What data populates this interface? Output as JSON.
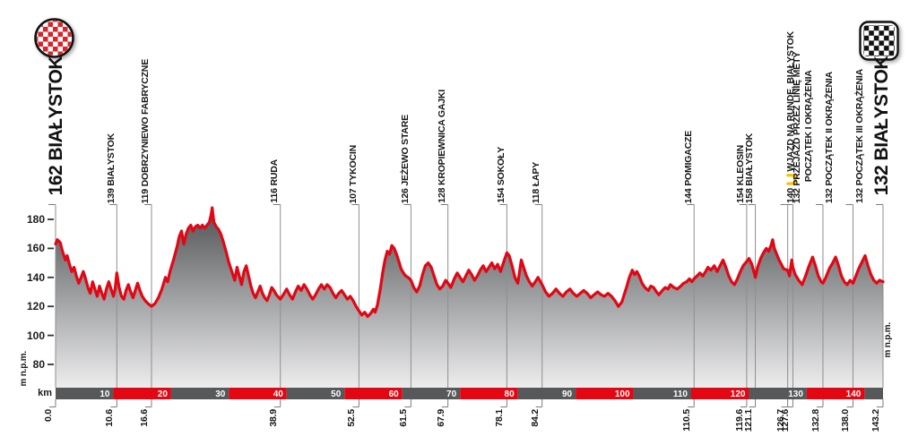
{
  "colors": {
    "profile_red": "#e30613",
    "bar_gray": "#57585a",
    "checker_red": "#d8232a",
    "waypoint_line_gray": "#8f8f8f",
    "hook_gray": "#7d7d7d",
    "text_dark": "#161616",
    "lap_icon_yellow": "#f5c400",
    "fill_top_gray": "#4f5052",
    "fill_bottom_gray": "#ededee"
  },
  "start": {
    "elevation": "162",
    "name": "BIAŁYSTOK",
    "label": "162 BIAŁYSTOK",
    "icon": "start-checkered-badge"
  },
  "finish": {
    "elevation": "132",
    "name": "BIAŁYSTOK",
    "label": "132 BIAŁYSTOK",
    "icon": "finish-checkered-flag"
  },
  "axis": {
    "unit_left": "m n.p.m.",
    "unit_right": "m n.p.m.",
    "km_label": "km",
    "y_ticks": [
      "180",
      "160",
      "140",
      "120",
      "100",
      "80"
    ]
  },
  "chart_data": {
    "type": "area",
    "xlabel": "km",
    "ylabel": "m n.p.m.",
    "x_range_km": [
      0,
      143.2
    ],
    "y_range_m": [
      80,
      190
    ],
    "grid": "vertical waypoint lines only",
    "legend": "none",
    "km_bar": {
      "interval_km": 10,
      "labels": [
        "10",
        "20",
        "30",
        "40",
        "50",
        "60",
        "70",
        "80",
        "90",
        "100",
        "110",
        "120",
        "130",
        "140"
      ],
      "alternating_colors": [
        "#57585a",
        "#e30613"
      ],
      "note": "segments alternate gray/red every 10 km, label at right end of each segment"
    },
    "waypoints": [
      {
        "km": 0.0,
        "km_label": "0.0",
        "elevation": 162,
        "name": "BIAŁYSTOK",
        "type": "start"
      },
      {
        "km": 10.6,
        "km_label": "10.6",
        "elevation": 139,
        "name": "BIAŁYSTOK",
        "label": "139 BIAŁYSTOK"
      },
      {
        "km": 16.6,
        "km_label": "16.6",
        "elevation": 119,
        "name": "DOBRZYNIEWO FABRYCZNE",
        "label": "119 DOBRZYNIEWO FABRYCZNE"
      },
      {
        "km": 38.9,
        "km_label": "38.9",
        "elevation": 116,
        "name": "RUDA",
        "label": "116 RUDA"
      },
      {
        "km": 52.5,
        "km_label": "52.5",
        "elevation": 107,
        "name": "TYKOCIN",
        "label": "107 TYKOCIN"
      },
      {
        "km": 61.5,
        "km_label": "61.5",
        "elevation": 126,
        "name": "JEŻEWO STARE",
        "label": "126 JEŻEWO STARE"
      },
      {
        "km": 67.9,
        "km_label": "67.9",
        "elevation": 128,
        "name": "KROPIEWNICA GAJKI",
        "label": "128 KROPIEWNICA GAJKI"
      },
      {
        "km": 78.1,
        "km_label": "78.1",
        "elevation": 154,
        "name": "SOKOŁY",
        "label": "154 SOKOŁY"
      },
      {
        "km": 84.2,
        "km_label": "84.2",
        "elevation": 118,
        "name": "ŁAPY",
        "label": "118 ŁAPY"
      },
      {
        "km": 110.5,
        "km_label": "110.5",
        "elevation": 144,
        "name": "POMIGACZE",
        "label": "144 POMIGACZE"
      },
      {
        "km": 119.6,
        "km_label": "119.6",
        "elevation": 154,
        "name": "KLEOSIN",
        "label": "154 KLEOSIN"
      },
      {
        "km": 121.1,
        "km_label": "121.1",
        "elevation": 158,
        "name": "BIAŁYSTOK",
        "label": "158 BIAŁYSTOK"
      },
      {
        "km": 126.7,
        "km_label": "126.7",
        "elevation": 140,
        "name": "WJAZD NA RUNDĘ, BIAŁYSTOK",
        "label_prefix": "140 ",
        "icon": "lap-loop-icon",
        "label_name": " WJAZD NA RUNDĘ, BIAŁYSTOK"
      },
      {
        "km": 127.6,
        "km_label": "127.6",
        "elevation": 132,
        "name": "PRZEJAZD PRZEZ LINIĘ METY / POCZĄTEK I OKRĄŻENIA",
        "lines": [
          "132 PRZEJAZD PRZEZ LINIĘ METY",
          "POCZĄTEK I OKRĄŻENIA"
        ]
      },
      {
        "km": 132.8,
        "km_label": "132.8",
        "elevation": 132,
        "name": "POCZĄTEK II OKRĄŻENIA",
        "label": "132 POCZĄTEK II OKRĄŻENIA"
      },
      {
        "km": 138.0,
        "km_label": "138.0",
        "elevation": 132,
        "name": "POCZĄTEK III OKRĄŻENIA",
        "label": "132 POCZĄTEK III OKRĄŻENIA"
      },
      {
        "km": 143.2,
        "km_label": "143.2",
        "elevation": 132,
        "name": "BIAŁYSTOK",
        "type": "finish"
      }
    ],
    "profile": [
      [
        0,
        163
      ],
      [
        0.3,
        166
      ],
      [
        0.8,
        164
      ],
      [
        1.2,
        158
      ],
      [
        1.7,
        152
      ],
      [
        2,
        155
      ],
      [
        2.4,
        149
      ],
      [
        2.8,
        144
      ],
      [
        3.2,
        147
      ],
      [
        3.6,
        141
      ],
      [
        4,
        136
      ],
      [
        4.4,
        140
      ],
      [
        4.8,
        144
      ],
      [
        5.2,
        139
      ],
      [
        5.6,
        133
      ],
      [
        6,
        129
      ],
      [
        6.4,
        137
      ],
      [
        6.8,
        132
      ],
      [
        7.2,
        127
      ],
      [
        7.6,
        134
      ],
      [
        8,
        129
      ],
      [
        8.4,
        125
      ],
      [
        8.8,
        132
      ],
      [
        9.2,
        137
      ],
      [
        9.6,
        132
      ],
      [
        10,
        127
      ],
      [
        10.3,
        132
      ],
      [
        10.6,
        143
      ],
      [
        11,
        133
      ],
      [
        11.4,
        127
      ],
      [
        11.8,
        125
      ],
      [
        12.2,
        131
      ],
      [
        12.6,
        135
      ],
      [
        13,
        130
      ],
      [
        13.4,
        126
      ],
      [
        13.8,
        131
      ],
      [
        14.2,
        136
      ],
      [
        14.6,
        131
      ],
      [
        15,
        127
      ],
      [
        15.5,
        124
      ],
      [
        16,
        122
      ],
      [
        16.6,
        120
      ],
      [
        17.2,
        122
      ],
      [
        17.8,
        126
      ],
      [
        18.4,
        132
      ],
      [
        19,
        140
      ],
      [
        19.4,
        137
      ],
      [
        19.8,
        144
      ],
      [
        20.4,
        152
      ],
      [
        21,
        161
      ],
      [
        21.4,
        168
      ],
      [
        21.8,
        172
      ],
      [
        22.2,
        163
      ],
      [
        22.6,
        170
      ],
      [
        23,
        174
      ],
      [
        23.4,
        176
      ],
      [
        23.8,
        172
      ],
      [
        24.2,
        175
      ],
      [
        24.6,
        176
      ],
      [
        25,
        174
      ],
      [
        25.4,
        176
      ],
      [
        25.8,
        174
      ],
      [
        26.2,
        176
      ],
      [
        26.6,
        178
      ],
      [
        26.9,
        183
      ],
      [
        27.1,
        188
      ],
      [
        27.4,
        178
      ],
      [
        27.8,
        175
      ],
      [
        28.2,
        173
      ],
      [
        28.6,
        170
      ],
      [
        29,
        165
      ],
      [
        29.5,
        158
      ],
      [
        30,
        150
      ],
      [
        30.5,
        144
      ],
      [
        31,
        138
      ],
      [
        31.4,
        147
      ],
      [
        31.8,
        141
      ],
      [
        32.2,
        135
      ],
      [
        32.6,
        144
      ],
      [
        33,
        148
      ],
      [
        33.4,
        141
      ],
      [
        33.8,
        134
      ],
      [
        34.2,
        129
      ],
      [
        34.6,
        126
      ],
      [
        35,
        130
      ],
      [
        35.4,
        134
      ],
      [
        35.8,
        129
      ],
      [
        36.2,
        126
      ],
      [
        36.6,
        124
      ],
      [
        37,
        128
      ],
      [
        37.4,
        133
      ],
      [
        37.8,
        131
      ],
      [
        38.2,
        128
      ],
      [
        38.9,
        125
      ],
      [
        39.4,
        128
      ],
      [
        40,
        132
      ],
      [
        40.5,
        128
      ],
      [
        41,
        125
      ],
      [
        41.5,
        130
      ],
      [
        42,
        134
      ],
      [
        42.5,
        131
      ],
      [
        43,
        135
      ],
      [
        43.5,
        132
      ],
      [
        44,
        128
      ],
      [
        44.5,
        125
      ],
      [
        45,
        128
      ],
      [
        45.5,
        132
      ],
      [
        46,
        135
      ],
      [
        46.5,
        132
      ],
      [
        47,
        135
      ],
      [
        47.5,
        133
      ],
      [
        48,
        129
      ],
      [
        48.5,
        126
      ],
      [
        49,
        129
      ],
      [
        49.5,
        131
      ],
      [
        50,
        128
      ],
      [
        50.5,
        125
      ],
      [
        51,
        127
      ],
      [
        51.5,
        124
      ],
      [
        52,
        120
      ],
      [
        52.5,
        117
      ],
      [
        53,
        114
      ],
      [
        53.5,
        116
      ],
      [
        54,
        113
      ],
      [
        54.5,
        115
      ],
      [
        55,
        118
      ],
      [
        55.3,
        116
      ],
      [
        55.7,
        121
      ],
      [
        56.2,
        132
      ],
      [
        56.6,
        143
      ],
      [
        57,
        152
      ],
      [
        57.4,
        158
      ],
      [
        57.8,
        156
      ],
      [
        58.2,
        162
      ],
      [
        58.6,
        160
      ],
      [
        59,
        156
      ],
      [
        59.4,
        151
      ],
      [
        59.8,
        146
      ],
      [
        60.2,
        143
      ],
      [
        60.6,
        141
      ],
      [
        61,
        140
      ],
      [
        61.5,
        138
      ],
      [
        62,
        133
      ],
      [
        62.5,
        130
      ],
      [
        63,
        134
      ],
      [
        63.5,
        142
      ],
      [
        64,
        148
      ],
      [
        64.5,
        150
      ],
      [
        65,
        147
      ],
      [
        65.5,
        141
      ],
      [
        66,
        135
      ],
      [
        66.5,
        132
      ],
      [
        67,
        134
      ],
      [
        67.5,
        138
      ],
      [
        67.9,
        136
      ],
      [
        68.4,
        133
      ],
      [
        69,
        139
      ],
      [
        69.5,
        143
      ],
      [
        70,
        140
      ],
      [
        70.5,
        137
      ],
      [
        71,
        141
      ],
      [
        71.5,
        145
      ],
      [
        72,
        142
      ],
      [
        72.5,
        138
      ],
      [
        73,
        141
      ],
      [
        73.5,
        145
      ],
      [
        74,
        148
      ],
      [
        74.5,
        144
      ],
      [
        75,
        147
      ],
      [
        75.5,
        150
      ],
      [
        76,
        146
      ],
      [
        76.5,
        149
      ],
      [
        77,
        144
      ],
      [
        77.5,
        150
      ],
      [
        78.1,
        157
      ],
      [
        78.5,
        155
      ],
      [
        79,
        148
      ],
      [
        79.5,
        140
      ],
      [
        80,
        136
      ],
      [
        80.6,
        152
      ],
      [
        81,
        147
      ],
      [
        81.5,
        141
      ],
      [
        82,
        137
      ],
      [
        82.5,
        134
      ],
      [
        83,
        137
      ],
      [
        83.5,
        140
      ],
      [
        84.2,
        135
      ],
      [
        84.8,
        130
      ],
      [
        85.4,
        127
      ],
      [
        86,
        129
      ],
      [
        86.6,
        132
      ],
      [
        87.2,
        129
      ],
      [
        87.8,
        127
      ],
      [
        88.4,
        130
      ],
      [
        89,
        132
      ],
      [
        89.6,
        129
      ],
      [
        90.2,
        127
      ],
      [
        90.8,
        129
      ],
      [
        91.4,
        131
      ],
      [
        92,
        129
      ],
      [
        92.6,
        126
      ],
      [
        93.2,
        128
      ],
      [
        93.8,
        130
      ],
      [
        94.4,
        128
      ],
      [
        95,
        127
      ],
      [
        95.6,
        129
      ],
      [
        96.2,
        127
      ],
      [
        96.8,
        124
      ],
      [
        97.4,
        120
      ],
      [
        98,
        123
      ],
      [
        98.4,
        128
      ],
      [
        98.8,
        133
      ],
      [
        99.3,
        140
      ],
      [
        99.8,
        145
      ],
      [
        100.2,
        142
      ],
      [
        100.6,
        144
      ],
      [
        101,
        141
      ],
      [
        101.5,
        136
      ],
      [
        102,
        133
      ],
      [
        102.6,
        131
      ],
      [
        103,
        134
      ],
      [
        103.5,
        133
      ],
      [
        104,
        130
      ],
      [
        104.4,
        128
      ],
      [
        105,
        131
      ],
      [
        105.5,
        133
      ],
      [
        106,
        132
      ],
      [
        106.4,
        135
      ],
      [
        107,
        133
      ],
      [
        107.6,
        132
      ],
      [
        108.2,
        134
      ],
      [
        108.7,
        136
      ],
      [
        109.2,
        137
      ],
      [
        109.7,
        139
      ],
      [
        110.1,
        137
      ],
      [
        110.5,
        139
      ],
      [
        111,
        141
      ],
      [
        111.5,
        143
      ],
      [
        112,
        141
      ],
      [
        112.5,
        144
      ],
      [
        112.9,
        147
      ],
      [
        113.4,
        145
      ],
      [
        114,
        148
      ],
      [
        114.5,
        144
      ],
      [
        115,
        148
      ],
      [
        115.5,
        152
      ],
      [
        116,
        147
      ],
      [
        116.5,
        141
      ],
      [
        117,
        137
      ],
      [
        117.5,
        135
      ],
      [
        118,
        139
      ],
      [
        118.5,
        144
      ],
      [
        119,
        148
      ],
      [
        119.6,
        151
      ],
      [
        120,
        153
      ],
      [
        120.5,
        149
      ],
      [
        121.1,
        140
      ],
      [
        121.5,
        147
      ],
      [
        122,
        153
      ],
      [
        122.5,
        157
      ],
      [
        123,
        160
      ],
      [
        123.4,
        158
      ],
      [
        123.8,
        162
      ],
      [
        124.1,
        166
      ],
      [
        124.4,
        160
      ],
      [
        124.8,
        156
      ],
      [
        125.2,
        152
      ],
      [
        125.6,
        149
      ],
      [
        126,
        146
      ],
      [
        126.7,
        145
      ],
      [
        127,
        141
      ],
      [
        127.4,
        152
      ],
      [
        127.6,
        147
      ],
      [
        128,
        142
      ],
      [
        128.6,
        138
      ],
      [
        129.2,
        135
      ],
      [
        129.8,
        141
      ],
      [
        130.4,
        148
      ],
      [
        131,
        154
      ],
      [
        131.5,
        148
      ],
      [
        132,
        141
      ],
      [
        132.5,
        137
      ],
      [
        132.8,
        136
      ],
      [
        133.3,
        140
      ],
      [
        133.9,
        146
      ],
      [
        134.5,
        150
      ],
      [
        135,
        154
      ],
      [
        135.5,
        148
      ],
      [
        136,
        141
      ],
      [
        136.5,
        137
      ],
      [
        137,
        135
      ],
      [
        137.5,
        138
      ],
      [
        138,
        136
      ],
      [
        138.5,
        141
      ],
      [
        139,
        146
      ],
      [
        139.6,
        151
      ],
      [
        140.1,
        155
      ],
      [
        140.6,
        148
      ],
      [
        141.1,
        142
      ],
      [
        141.6,
        138
      ],
      [
        142.1,
        136
      ],
      [
        142.6,
        138
      ],
      [
        143.2,
        137
      ]
    ]
  }
}
